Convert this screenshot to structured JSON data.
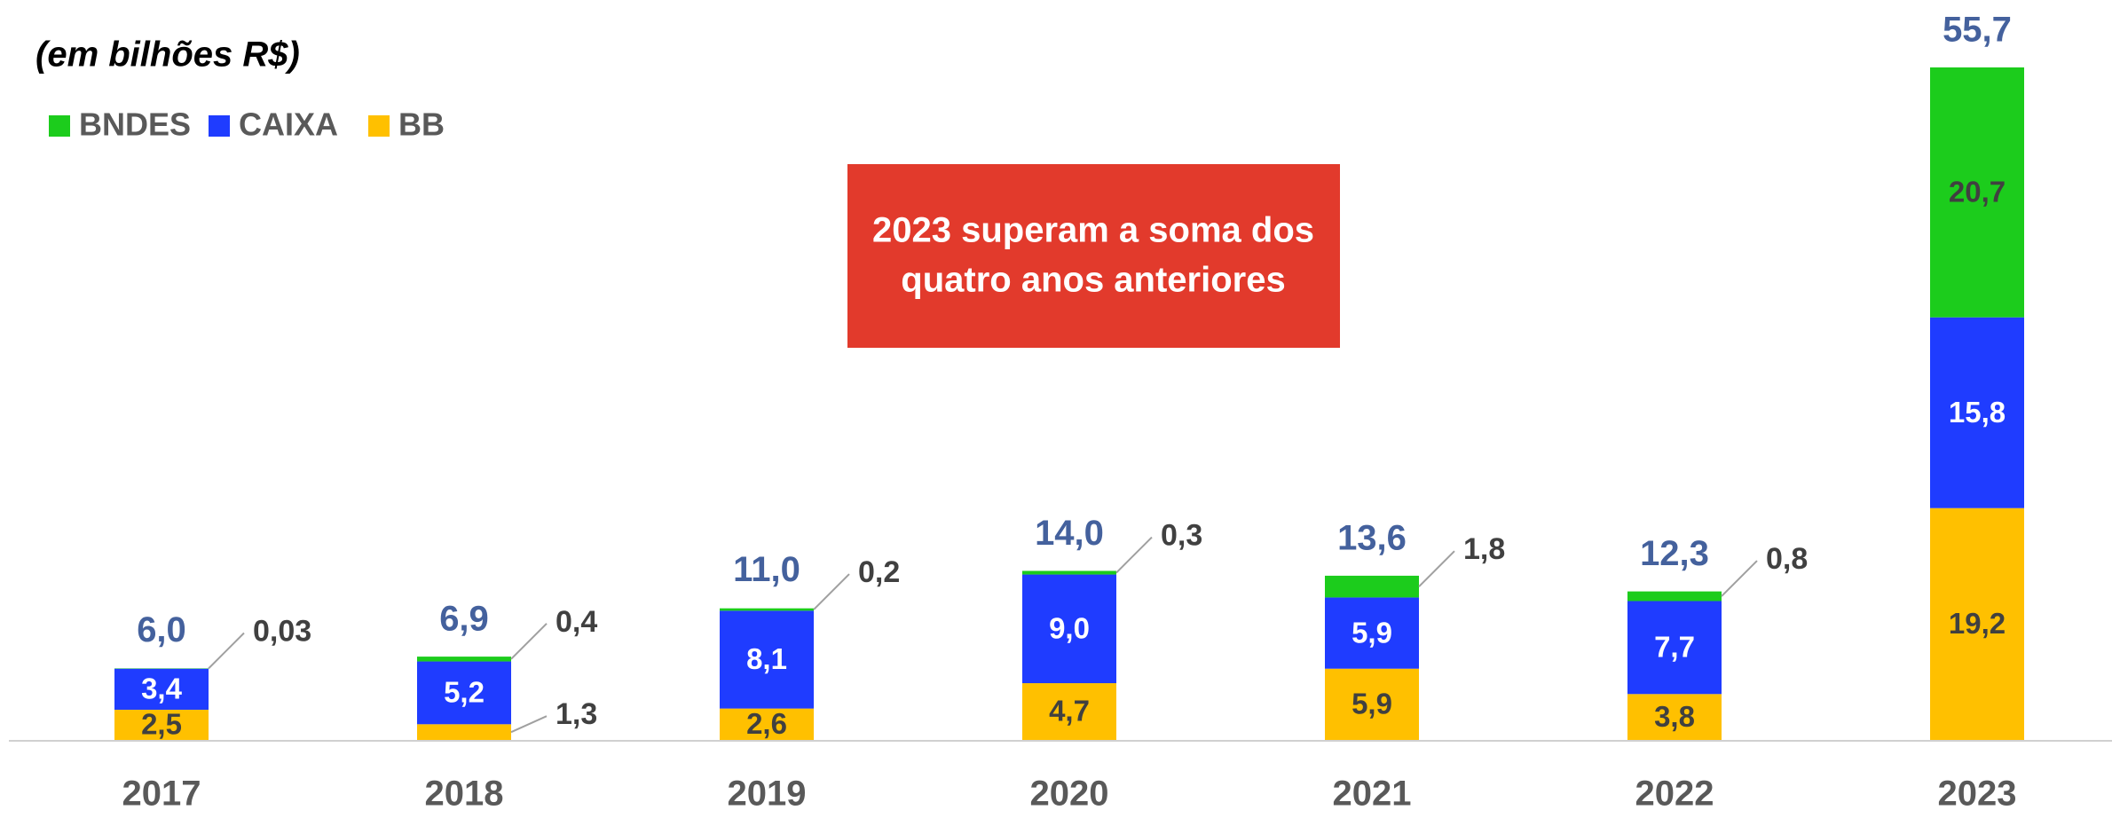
{
  "chart_data": {
    "type": "stacked-bar",
    "subtitle": "(em bilhões R$)",
    "annotation": [
      "2023 superam a soma dos",
      "quatro anos anteriores"
    ],
    "categories": [
      "2017",
      "2018",
      "2019",
      "2020",
      "2021",
      "2022",
      "2023"
    ],
    "series": [
      {
        "name": "BB",
        "color": "#ffc000",
        "values": [
          2.5,
          1.3,
          2.6,
          4.7,
          5.9,
          3.8,
          19.2
        ],
        "value_labels": [
          "2,5",
          "1,3",
          "2,6",
          "4,7",
          "5,9",
          "3,8",
          "19,2"
        ]
      },
      {
        "name": "CAIXA",
        "color": "#1f3cff",
        "values": [
          3.4,
          5.2,
          8.1,
          9.0,
          5.9,
          7.7,
          15.8
        ],
        "value_labels": [
          "3,4",
          "5,2",
          "8,1",
          "9,0",
          "5,9",
          "7,7",
          "15,8"
        ]
      },
      {
        "name": "BNDES",
        "color": "#1ccc1c",
        "values": [
          0.03,
          0.4,
          0.2,
          0.3,
          1.8,
          0.8,
          20.7
        ],
        "value_labels": [
          "0,03",
          "0,4",
          "0,2",
          "0,3",
          "1,8",
          "0,8",
          "20,7"
        ]
      }
    ],
    "totals": [
      6.0,
      6.9,
      11.0,
      14.0,
      13.6,
      12.3,
      55.7
    ],
    "total_labels": [
      "6,0",
      "6,9",
      "11,0",
      "14,0",
      "13,6",
      "12,3",
      "55,7"
    ]
  }
}
